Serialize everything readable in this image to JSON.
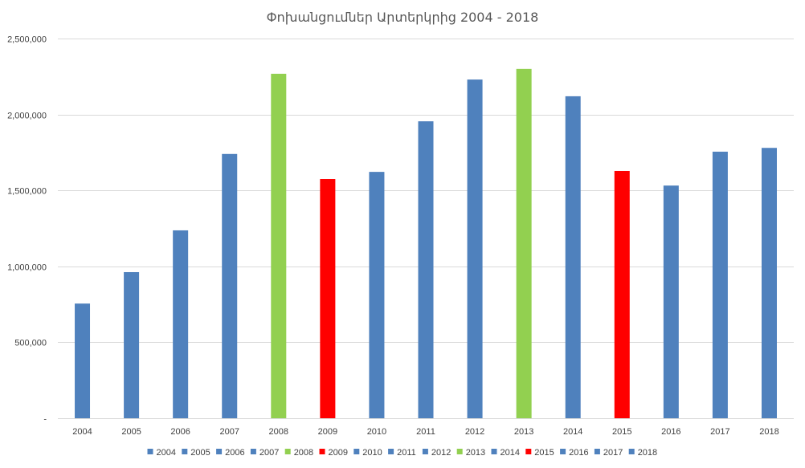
{
  "chart_data": {
    "type": "bar",
    "title": "Փոխանցումներ Արտերկրից 2004 - 2018",
    "xlabel": "",
    "ylabel": "",
    "ylim": [
      0,
      2500000
    ],
    "y_ticks": [
      {
        "value": 0,
        "label": "-"
      },
      {
        "value": 500000,
        "label": "500,000"
      },
      {
        "value": 1000000,
        "label": "1,000,000"
      },
      {
        "value": 1500000,
        "label": "1,500,000"
      },
      {
        "value": 2000000,
        "label": "2,000,000"
      },
      {
        "value": 2500000,
        "label": "2,500,000"
      }
    ],
    "grid": true,
    "legend_position": "bottom",
    "categories": [
      "2004",
      "2005",
      "2006",
      "2007",
      "2008",
      "2009",
      "2010",
      "2011",
      "2012",
      "2013",
      "2014",
      "2015",
      "2016",
      "2017",
      "2018"
    ],
    "values": [
      755000,
      962000,
      1237000,
      1740000,
      2268000,
      1575000,
      1622000,
      1955000,
      2230000,
      2300000,
      2120000,
      1628000,
      1532000,
      1755000,
      1780000
    ],
    "colors": [
      "#4f81bd",
      "#4f81bd",
      "#4f81bd",
      "#4f81bd",
      "#92d050",
      "#ff0000",
      "#4f81bd",
      "#4f81bd",
      "#4f81bd",
      "#92d050",
      "#4f81bd",
      "#ff0000",
      "#4f81bd",
      "#4f81bd",
      "#4f81bd"
    ]
  },
  "style": {
    "gridline_color": "#d9d9d9",
    "text_color": "#404040",
    "title_color": "#595959"
  }
}
